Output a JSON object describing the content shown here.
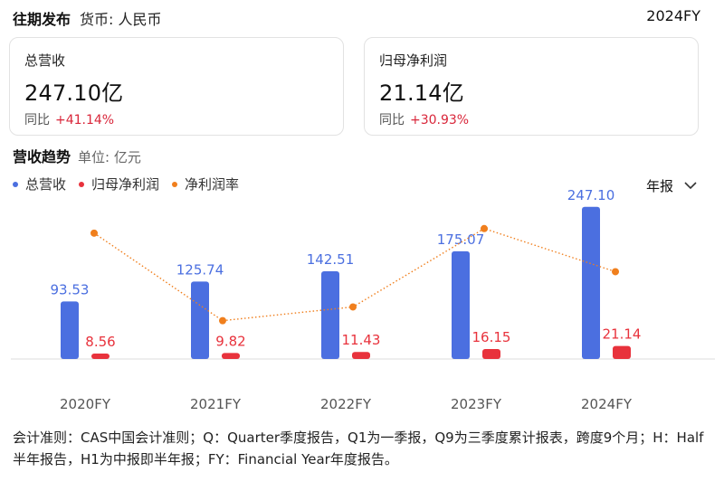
{
  "header": {
    "title": "往期发布",
    "currency": "货币: 人民币",
    "period": "2024FY"
  },
  "cards": [
    {
      "label": "总营收",
      "value": "247.10亿",
      "yoy_label": "同比",
      "yoy_value": "+41.14%"
    },
    {
      "label": "归母净利润",
      "value": "21.14亿",
      "yoy_label": "同比",
      "yoy_value": "+30.93%"
    }
  ],
  "section": {
    "title": "营收趋势",
    "unit": "单位: 亿元"
  },
  "legend": [
    {
      "label": "总营收",
      "color": "#4b6fe0"
    },
    {
      "label": "归母净利润",
      "color": "#e8323c"
    },
    {
      "label": "净利润率",
      "color": "#f07f1d"
    }
  ],
  "period_select": {
    "label": "年报"
  },
  "chart_data": {
    "type": "bar",
    "categories": [
      "2020FY",
      "2021FY",
      "2022FY",
      "2023FY",
      "2024FY"
    ],
    "series": [
      {
        "name": "总营收",
        "type": "bar",
        "color": "#4b6fe0",
        "values": [
          93.53,
          125.74,
          142.51,
          175.07,
          247.1
        ],
        "labels": [
          "93.53",
          "125.74",
          "142.51",
          "175.07",
          "247.10"
        ]
      },
      {
        "name": "归母净利润",
        "type": "bar",
        "color": "#e8323c",
        "values": [
          8.56,
          9.82,
          11.43,
          16.15,
          21.14
        ],
        "labels": [
          "8.56",
          "9.82",
          "11.43",
          "16.15",
          "21.14"
        ]
      },
      {
        "name": "净利润率",
        "type": "line",
        "style": "dotted",
        "color": "#f07f1d",
        "values": [
          9.15,
          7.81,
          8.02,
          9.22,
          8.56
        ]
      }
    ],
    "ylim": [
      0,
      260
    ],
    "ratio_range": [
      7.5,
      9.3
    ]
  },
  "footnote": "会计准则：CAS中国会计准则；Q：Quarter季度报告，Q1为一季报，Q9为三季度累计报表，跨度9个月；H：Half半年报告，H1为中报即半年报；FY：Financial Year年度报告。"
}
